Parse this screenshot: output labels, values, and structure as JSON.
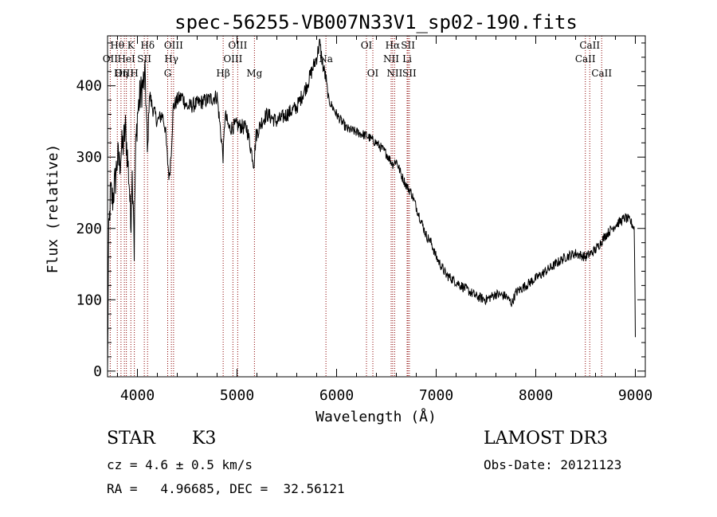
{
  "chart_data": {
    "type": "line",
    "title": "spec-56255-VB007N33V1_sp02-190.fits",
    "xlabel": "Wavelength (Å)",
    "ylabel": "Flux (relative)",
    "xlim": [
      3700,
      9100
    ],
    "ylim": [
      -8,
      470
    ],
    "xticks": [
      {
        "value": 4000,
        "label": "4000"
      },
      {
        "value": 5000,
        "label": "5000"
      },
      {
        "value": 6000,
        "label": "6000"
      },
      {
        "value": 7000,
        "label": "7000"
      },
      {
        "value": 8000,
        "label": "8000"
      },
      {
        "value": 9000,
        "label": "9000"
      }
    ],
    "yticks": [
      {
        "value": 0,
        "label": "0"
      },
      {
        "value": 100,
        "label": "100"
      },
      {
        "value": 200,
        "label": "200"
      },
      {
        "value": 300,
        "label": "300"
      },
      {
        "value": 400,
        "label": "400"
      }
    ],
    "grid": false,
    "line_color": "#8b0000",
    "spectrum_color": "#000000",
    "spectrum_anchor_points": [
      [
        3700,
        0
      ],
      [
        3710,
        180
      ],
      [
        3730,
        250
      ],
      [
        3750,
        240
      ],
      [
        3780,
        270
      ],
      [
        3800,
        300
      ],
      [
        3820,
        290
      ],
      [
        3840,
        310
      ],
      [
        3860,
        320
      ],
      [
        3880,
        340
      ],
      [
        3900,
        300
      ],
      [
        3920,
        260
      ],
      [
        3933,
        200
      ],
      [
        3945,
        280
      ],
      [
        3960,
        240
      ],
      [
        3968,
        170
      ],
      [
        3980,
        300
      ],
      [
        4000,
        360
      ],
      [
        4020,
        380
      ],
      [
        4050,
        400
      ],
      [
        4080,
        410
      ],
      [
        4101,
        300
      ],
      [
        4120,
        390
      ],
      [
        4150,
        370
      ],
      [
        4200,
        350
      ],
      [
        4250,
        360
      ],
      [
        4280,
        340
      ],
      [
        4300,
        300
      ],
      [
        4320,
        270
      ],
      [
        4340,
        310
      ],
      [
        4360,
        370
      ],
      [
        4400,
        380
      ],
      [
        4450,
        385
      ],
      [
        4500,
        370
      ],
      [
        4600,
        375
      ],
      [
        4700,
        380
      ],
      [
        4800,
        385
      ],
      [
        4861,
        300
      ],
      [
        4880,
        360
      ],
      [
        4920,
        340
      ],
      [
        5000,
        345
      ],
      [
        5100,
        340
      ],
      [
        5170,
        290
      ],
      [
        5190,
        330
      ],
      [
        5250,
        350
      ],
      [
        5300,
        360
      ],
      [
        5400,
        350
      ],
      [
        5500,
        360
      ],
      [
        5600,
        370
      ],
      [
        5700,
        400
      ],
      [
        5750,
        420
      ],
      [
        5800,
        440
      ],
      [
        5830,
        460
      ],
      [
        5860,
        430
      ],
      [
        5893,
        410
      ],
      [
        5920,
        380
      ],
      [
        5960,
        370
      ],
      [
        6000,
        360
      ],
      [
        6100,
        340
      ],
      [
        6200,
        335
      ],
      [
        6300,
        330
      ],
      [
        6400,
        320
      ],
      [
        6500,
        305
      ],
      [
        6563,
        290
      ],
      [
        6600,
        295
      ],
      [
        6650,
        275
      ],
      [
        6700,
        260
      ],
      [
        6750,
        250
      ],
      [
        6800,
        230
      ],
      [
        6850,
        210
      ],
      [
        6900,
        190
      ],
      [
        6950,
        180
      ],
      [
        7000,
        160
      ],
      [
        7100,
        135
      ],
      [
        7200,
        125
      ],
      [
        7300,
        115
      ],
      [
        7400,
        105
      ],
      [
        7500,
        100
      ],
      [
        7600,
        108
      ],
      [
        7700,
        105
      ],
      [
        7760,
        95
      ],
      [
        7800,
        110
      ],
      [
        7900,
        120
      ],
      [
        8000,
        130
      ],
      [
        8100,
        140
      ],
      [
        8200,
        150
      ],
      [
        8300,
        160
      ],
      [
        8400,
        165
      ],
      [
        8500,
        160
      ],
      [
        8550,
        165
      ],
      [
        8600,
        170
      ],
      [
        8700,
        190
      ],
      [
        8800,
        205
      ],
      [
        8900,
        215
      ],
      [
        8950,
        210
      ],
      [
        8990,
        200
      ],
      [
        9000,
        50
      ]
    ],
    "line_labels": [
      {
        "text": "Hθ",
        "lam": 3798,
        "row": 0,
        "side": "left"
      },
      {
        "text": "OII",
        "lam": 3727,
        "row": 1,
        "side": "left"
      },
      {
        "text": "OIII",
        "lam": 3869,
        "row": 2,
        "side": "left"
      },
      {
        "text": "K",
        "lam": 3934,
        "row": 0,
        "side": "left"
      },
      {
        "text": "HeI",
        "lam": 3889,
        "row": 1,
        "side": "left"
      },
      {
        "text": "Hη",
        "lam": 3835,
        "row": 2,
        "side": "left"
      },
      {
        "text": "SII",
        "lam": 4069,
        "row": 1,
        "side": "left"
      },
      {
        "text": "H",
        "lam": 3969,
        "row": 2,
        "side": "left"
      },
      {
        "text": "Hδ",
        "lam": 4102,
        "row": 0,
        "side": "left"
      },
      {
        "text": "OIII",
        "lam": 4363,
        "row": 0,
        "side": "left"
      },
      {
        "text": "Hγ",
        "lam": 4341,
        "row": 1,
        "side": "left"
      },
      {
        "text": "G",
        "lam": 4304,
        "row": 2,
        "side": "left"
      },
      {
        "text": "OIII",
        "lam": 5007,
        "row": 0,
        "side": "left"
      },
      {
        "text": "OIII",
        "lam": 4959,
        "row": 1,
        "side": "left"
      },
      {
        "text": "Hβ",
        "lam": 4861,
        "row": 2,
        "side": "left"
      },
      {
        "text": "Mg",
        "lam": 5175,
        "row": 2,
        "side": "left"
      },
      {
        "text": "Na",
        "lam": 5893,
        "row": 1,
        "side": "left"
      },
      {
        "text": "OI",
        "lam": 6300,
        "row": 0,
        "side": "left"
      },
      {
        "text": "OI",
        "lam": 6364,
        "row": 2,
        "side": "left"
      },
      {
        "text": "Hα",
        "lam": 6563,
        "row": 0,
        "side": "left"
      },
      {
        "text": "NII",
        "lam": 6548,
        "row": 1,
        "side": "left"
      },
      {
        "text": "NII",
        "lam": 6583,
        "row": 2,
        "side": "left"
      },
      {
        "text": "SII",
        "lam": 6717,
        "row": 0,
        "side": "left"
      },
      {
        "text": "Li",
        "lam": 6708,
        "row": 1,
        "side": "left"
      },
      {
        "text": "SII",
        "lam": 6731,
        "row": 2,
        "side": "left"
      },
      {
        "text": "CaII",
        "lam": 8542,
        "row": 0,
        "side": "left"
      },
      {
        "text": "CaII",
        "lam": 8498,
        "row": 1,
        "side": "left"
      },
      {
        "text": "CaII",
        "lam": 8662,
        "row": 2,
        "side": "left"
      }
    ]
  },
  "info": {
    "class_label": "STAR",
    "subclass": "K3",
    "survey": "LAMOST DR3",
    "redshift": "cz = 4.6 ± 0.5 km/s",
    "obs_date": "Obs-Date: 20121123",
    "coords": "RA =   4.96685, DEC =  32.56121"
  }
}
